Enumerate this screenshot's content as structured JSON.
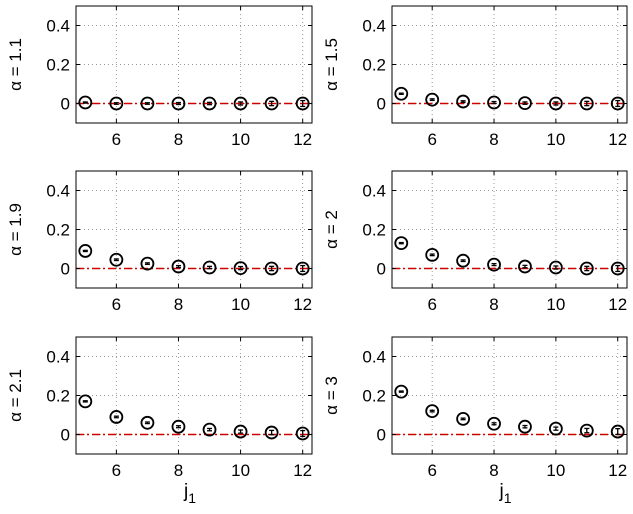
{
  "chart_data": [
    {
      "type": "scatter",
      "ylabel": "α = 1.1",
      "xlabel": "",
      "xlim": [
        4.7,
        12.3
      ],
      "ylim": [
        -0.1,
        0.5
      ],
      "xticks": [
        6,
        8,
        10,
        12
      ],
      "yticks": [
        0,
        0.2,
        0.4
      ],
      "ytick_labels": [
        "0",
        "0.2",
        "0.4"
      ],
      "grid": true,
      "reference_line": {
        "y": 0,
        "style": "dash-dot",
        "color": "#d00000"
      },
      "x": [
        5,
        6,
        7,
        8,
        9,
        10,
        11,
        12
      ],
      "y": [
        0.005,
        0.0,
        0.0,
        0.0,
        0.0,
        0.0,
        0.0,
        0.0
      ],
      "err": [
        0.003,
        0.004,
        0.004,
        0.005,
        0.006,
        0.008,
        0.011,
        0.015
      ]
    },
    {
      "type": "scatter",
      "ylabel": "α = 1.5",
      "xlabel": "",
      "xlim": [
        4.7,
        12.3
      ],
      "ylim": [
        -0.1,
        0.5
      ],
      "xticks": [
        6,
        8,
        10,
        12
      ],
      "yticks": [
        0,
        0.2,
        0.4
      ],
      "ytick_labels": [
        "0",
        "0.2",
        "0.4"
      ],
      "grid": true,
      "reference_line": {
        "y": 0,
        "style": "dash-dot",
        "color": "#d00000"
      },
      "x": [
        5,
        6,
        7,
        8,
        9,
        10,
        11,
        12
      ],
      "y": [
        0.05,
        0.02,
        0.01,
        0.005,
        0.002,
        0.0,
        0.0,
        0.0
      ],
      "err": [
        0.003,
        0.004,
        0.004,
        0.005,
        0.006,
        0.008,
        0.011,
        0.015
      ]
    },
    {
      "type": "scatter",
      "ylabel": "α = 1.9",
      "xlabel": "",
      "xlim": [
        4.7,
        12.3
      ],
      "ylim": [
        -0.1,
        0.5
      ],
      "xticks": [
        6,
        8,
        10,
        12
      ],
      "yticks": [
        0,
        0.2,
        0.4
      ],
      "ytick_labels": [
        "0",
        "0.2",
        "0.4"
      ],
      "grid": true,
      "reference_line": {
        "y": 0,
        "style": "dash-dot",
        "color": "#d00000"
      },
      "x": [
        5,
        6,
        7,
        8,
        9,
        10,
        11,
        12
      ],
      "y": [
        0.09,
        0.045,
        0.025,
        0.01,
        0.005,
        0.002,
        0.0,
        0.0
      ],
      "err": [
        0.003,
        0.004,
        0.004,
        0.005,
        0.006,
        0.008,
        0.011,
        0.015
      ]
    },
    {
      "type": "scatter",
      "ylabel": "α = 2",
      "xlabel": "",
      "xlim": [
        4.7,
        12.3
      ],
      "ylim": [
        -0.1,
        0.5
      ],
      "xticks": [
        6,
        8,
        10,
        12
      ],
      "yticks": [
        0,
        0.2,
        0.4
      ],
      "ytick_labels": [
        "0",
        "0.2",
        "0.4"
      ],
      "grid": true,
      "reference_line": {
        "y": 0,
        "style": "dash-dot",
        "color": "#d00000"
      },
      "x": [
        5,
        6,
        7,
        8,
        9,
        10,
        11,
        12
      ],
      "y": [
        0.13,
        0.07,
        0.04,
        0.02,
        0.01,
        0.005,
        0.0,
        0.0
      ],
      "err": [
        0.003,
        0.004,
        0.004,
        0.005,
        0.006,
        0.008,
        0.011,
        0.015
      ]
    },
    {
      "type": "scatter",
      "ylabel": "α = 2.1",
      "xlabel": "j1",
      "xlim": [
        4.7,
        12.3
      ],
      "ylim": [
        -0.1,
        0.5
      ],
      "xticks": [
        6,
        8,
        10,
        12
      ],
      "yticks": [
        0,
        0.2,
        0.4
      ],
      "ytick_labels": [
        "0",
        "0.2",
        "0.4"
      ],
      "grid": true,
      "reference_line": {
        "y": 0,
        "style": "dash-dot",
        "color": "#d00000"
      },
      "x": [
        5,
        6,
        7,
        8,
        9,
        10,
        11,
        12
      ],
      "y": [
        0.17,
        0.09,
        0.06,
        0.04,
        0.025,
        0.015,
        0.01,
        0.005
      ],
      "err": [
        0.003,
        0.004,
        0.004,
        0.005,
        0.006,
        0.008,
        0.011,
        0.015
      ]
    },
    {
      "type": "scatter",
      "ylabel": "α = 3",
      "xlabel": "j1",
      "xlim": [
        4.7,
        12.3
      ],
      "ylim": [
        -0.1,
        0.5
      ],
      "xticks": [
        6,
        8,
        10,
        12
      ],
      "yticks": [
        0,
        0.2,
        0.4
      ],
      "ytick_labels": [
        "0",
        "0.2",
        "0.4"
      ],
      "grid": true,
      "reference_line": {
        "y": 0,
        "style": "dash-dot",
        "color": "#d00000"
      },
      "x": [
        5,
        6,
        7,
        8,
        9,
        10,
        11,
        12
      ],
      "y": [
        0.22,
        0.12,
        0.08,
        0.055,
        0.04,
        0.03,
        0.02,
        0.015
      ],
      "err": [
        0.003,
        0.004,
        0.004,
        0.005,
        0.006,
        0.008,
        0.011,
        0.015
      ]
    }
  ]
}
